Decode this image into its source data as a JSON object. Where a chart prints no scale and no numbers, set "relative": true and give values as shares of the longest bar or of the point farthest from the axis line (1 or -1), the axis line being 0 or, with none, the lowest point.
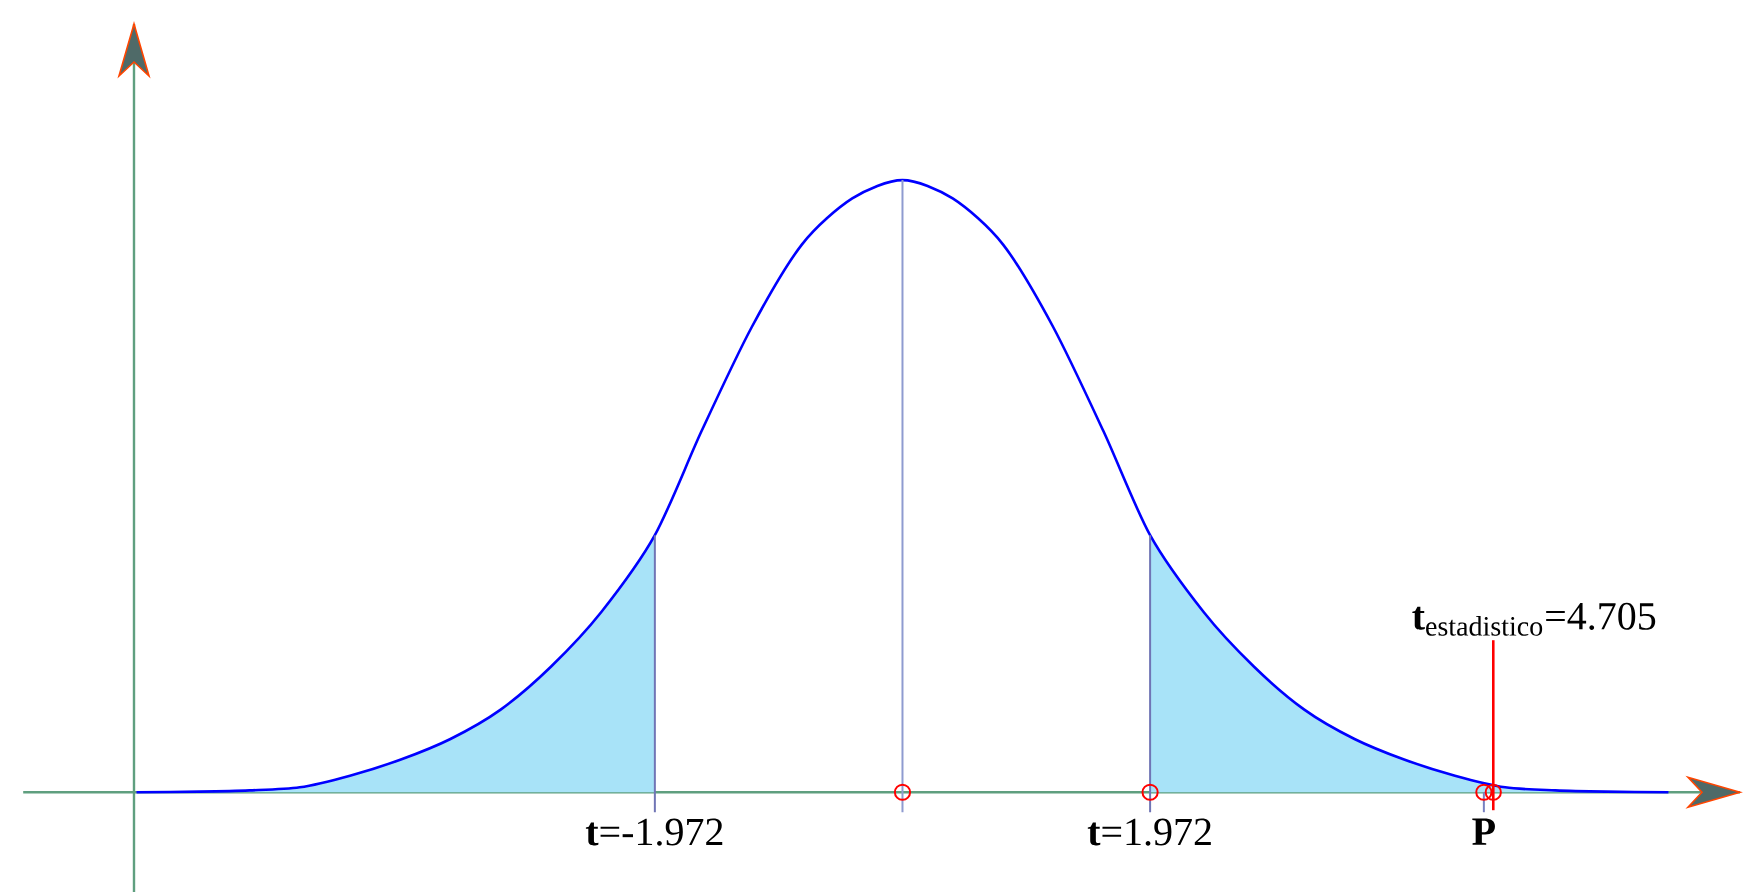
{
  "chart_data": {
    "type": "line",
    "relative": true,
    "xlim": [
      -6.12,
      6.67
    ],
    "xticks": [
      {
        "value": -1.972,
        "label": "**t**=-1.972"
      },
      {
        "value": 1.972,
        "label": "**t**=1.972"
      }
    ],
    "series": [
      {
        "type": "area",
        "color": "#a8e3f8",
        "x": [
          -6.1,
          -5.6,
          -5.2,
          -4.8,
          -4.4,
          -4.0,
          -3.6,
          -3.2,
          -2.8,
          -2.4,
          -1.972
        ],
        "values": [
          0,
          0.001,
          0.003,
          0.008,
          0.027,
          0.053,
          0.087,
          0.135,
          0.205,
          0.294,
          0.42
        ]
      },
      {
        "type": "area",
        "color": "#a8e3f8",
        "x": [
          1.972,
          2.4,
          2.8,
          3.2,
          3.6,
          4.0,
          4.4,
          4.8,
          5.2,
          5.6,
          6.1
        ],
        "values": [
          0.42,
          0.294,
          0.205,
          0.135,
          0.087,
          0.053,
          0.027,
          0.008,
          0.003,
          0.001,
          0
        ]
      },
      {
        "color": "#0000ff",
        "x": [
          -6.1,
          -5.6,
          -5.2,
          -4.8,
          -4.4,
          -4.0,
          -3.6,
          -3.2,
          -2.8,
          -2.4,
          -1.972,
          -1.6,
          -1.2,
          -0.8,
          -0.4,
          0,
          0.4,
          0.8,
          1.2,
          1.6,
          1.972,
          2.4,
          2.8,
          3.2,
          3.6,
          4.0,
          4.4,
          4.8,
          5.2,
          5.6,
          6.1
        ],
        "values": [
          0,
          0.001,
          0.003,
          0.008,
          0.027,
          0.053,
          0.087,
          0.135,
          0.205,
          0.294,
          0.42,
          0.59,
          0.76,
          0.895,
          0.97,
          1,
          0.97,
          0.895,
          0.76,
          0.59,
          0.42,
          0.294,
          0.205,
          0.135,
          0.087,
          0.053,
          0.027,
          0.008,
          0.003,
          0.001,
          0
        ]
      },
      {
        "type": "scatter",
        "color": "#ff0000",
        "marker": "circle",
        "x": [
          0,
          1.972,
          4.705,
          4.63
        ],
        "values": [
          0,
          0,
          0,
          0
        ]
      }
    ],
    "ref_lines": [
      {
        "axis": "x",
        "value": -1.972,
        "color": "#7075b5"
      },
      {
        "axis": "x",
        "value": 0,
        "color": "#8f9bd0"
      },
      {
        "axis": "x",
        "value": 1.972,
        "color": "#7075b5"
      },
      {
        "axis": "x",
        "value": 4.705,
        "label": "\\text{\\textbf{t}}_{\\text{estadistico}}\\text{=4.705}",
        "color": "#ff0000"
      }
    ],
    "annotations": [
      {
        "text": "P",
        "x": 4.63,
        "y": 0
      }
    ]
  }
}
